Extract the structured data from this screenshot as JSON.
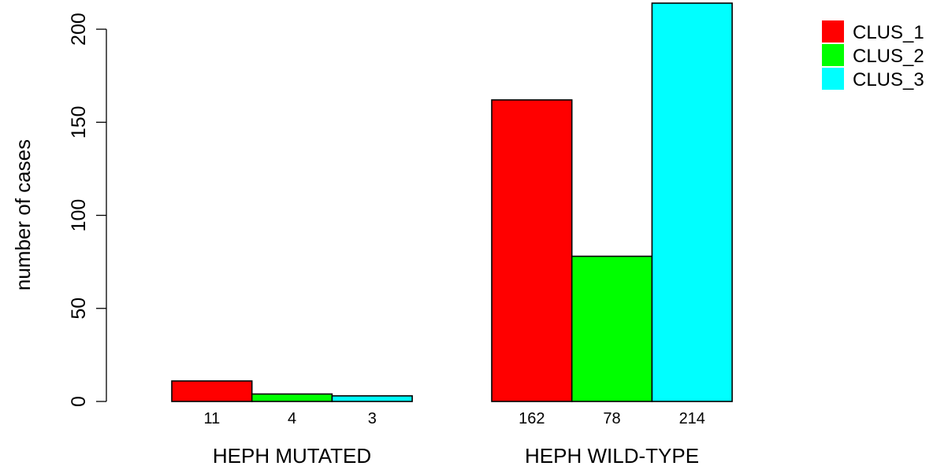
{
  "chart_data": {
    "type": "bar",
    "layout": "grouped",
    "title": "",
    "xlabel": "",
    "ylabel": "number of cases",
    "ylim": [
      0,
      214
    ],
    "yticks": [
      0,
      50,
      100,
      150,
      200
    ],
    "categories": [
      "HEPH MUTATED",
      "HEPH WILD-TYPE"
    ],
    "series": [
      {
        "name": "CLUS_1",
        "color": "#ff0000",
        "values": [
          11,
          162
        ]
      },
      {
        "name": "CLUS_2",
        "color": "#00ff00",
        "values": [
          4,
          78
        ]
      },
      {
        "name": "CLUS_3",
        "color": "#00ffff",
        "values": [
          3,
          214
        ]
      }
    ],
    "legend": {
      "position": "top-right"
    },
    "grid": false
  }
}
